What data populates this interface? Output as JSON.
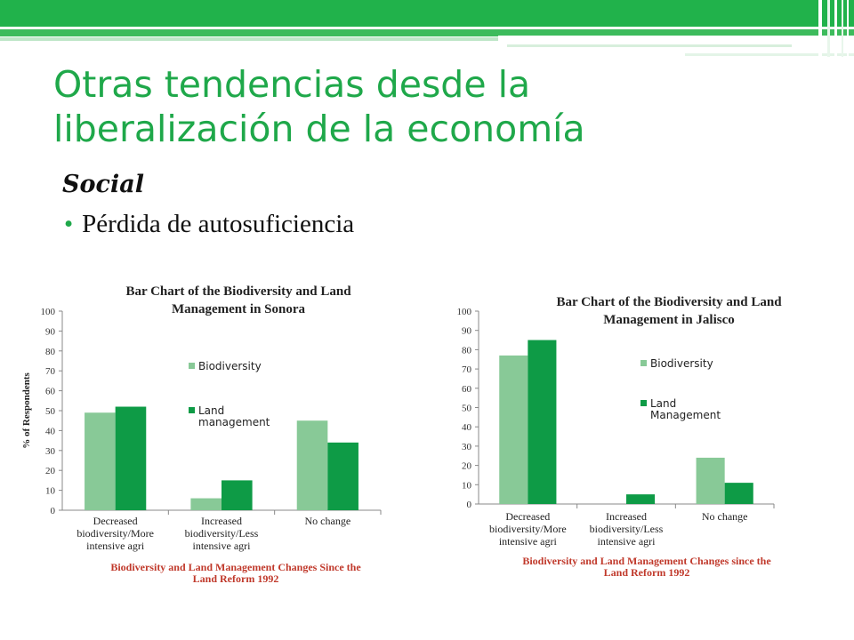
{
  "slide": {
    "title_line1": "Otras tendencias desde la",
    "title_line2": "liberalización de la economía",
    "subtitle": "Social",
    "bullet": "Pérdida de autosuficiencia"
  },
  "colors": {
    "accent": "#1fa84a",
    "biodiversity": "#88c997",
    "land": "#0e9b46",
    "chart_title": "#222222",
    "xlabel": "#c0392b"
  },
  "chart_data": [
    {
      "type": "bar",
      "title": "Bar Chart of the Biodiversity and Land Management in Sonora",
      "title_lines": [
        "Bar Chart of the Biodiversity and Land",
        "Management in Sonora"
      ],
      "ylabel": "% of Respondents",
      "xlabel": "Biodiversity and Land Management Changes Since the Land Reform 1992",
      "xlabel_lines": [
        "Biodiversity and Land Management Changes Since the",
        "Land Reform 1992"
      ],
      "ylim": [
        0,
        100
      ],
      "yticks": [
        "0",
        "10",
        "20",
        "30",
        "40",
        "50",
        "60",
        "70",
        "80",
        "90",
        "100"
      ],
      "categories": [
        "Decreased biodiversity/More intensive agri",
        "Increased biodiversity/Less intensive agri",
        "No change"
      ],
      "category_lines": [
        [
          "Decreased",
          "biodiversity/More",
          "intensive agri"
        ],
        [
          "Increased",
          "biodiversity/Less",
          "intensive agri"
        ],
        [
          "No change"
        ]
      ],
      "series": [
        {
          "name": "Biodiversity",
          "name_lines": [
            "Biodiversity"
          ],
          "values": [
            49,
            6,
            45
          ]
        },
        {
          "name": "Land management",
          "name_lines": [
            "Land",
            "management"
          ],
          "values": [
            52,
            15,
            34
          ]
        }
      ],
      "legend": "right",
      "grid": false
    },
    {
      "type": "bar",
      "title": "Bar Chart of the Biodiversity and Land Management in Jalisco",
      "title_lines": [
        "Bar Chart of the Biodiversity and Land",
        "Management in Jalisco"
      ],
      "ylabel": "",
      "xlabel": "Biodiversity and Land Management Changes since the Land Reform 1992",
      "xlabel_lines": [
        "Biodiversity and Land Management Changes since the",
        "Land Reform 1992"
      ],
      "ylim": [
        0,
        100
      ],
      "yticks": [
        "0",
        "10",
        "20",
        "30",
        "40",
        "50",
        "60",
        "70",
        "80",
        "90",
        "100"
      ],
      "categories": [
        "Decreased biodiversity/More intensive agri",
        "Increased biodiversity/Less intensive agri",
        "No change"
      ],
      "category_lines": [
        [
          "Decreased",
          "biodiversity/More",
          "intensive agri"
        ],
        [
          "Increased",
          "biodiversity/Less",
          "intensive agri"
        ],
        [
          "No change"
        ]
      ],
      "series": [
        {
          "name": "Biodiversity",
          "name_lines": [
            "Biodiversity"
          ],
          "values": [
            77,
            0,
            24
          ]
        },
        {
          "name": "Land Management",
          "name_lines": [
            "Land",
            "Management"
          ],
          "values": [
            85,
            5,
            11
          ]
        }
      ],
      "legend": "right",
      "grid": false
    }
  ]
}
